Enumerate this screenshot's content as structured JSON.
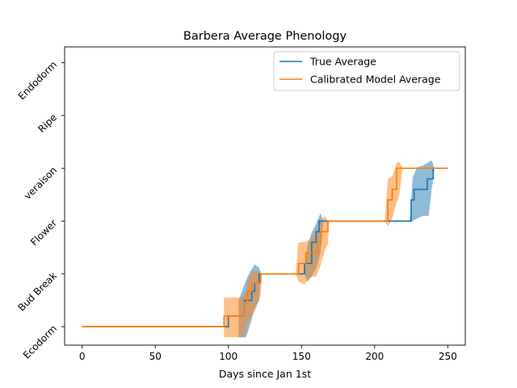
{
  "chart_data": {
    "type": "line",
    "title": "Barbera Average Phenology",
    "xlabel": "Days since Jan 1st",
    "ylabel": "",
    "xlim": [
      -12,
      262
    ],
    "ylim": [
      -0.35,
      5.3
    ],
    "xticks": [
      0,
      50,
      100,
      150,
      200,
      250
    ],
    "yticks": [
      {
        "value": 0,
        "label": "Ecodorm"
      },
      {
        "value": 1,
        "label": "Bud Break"
      },
      {
        "value": 2,
        "label": "Flower"
      },
      {
        "value": 3,
        "label": "veraison"
      },
      {
        "value": 4,
        "label": "Ripe"
      },
      {
        "value": 5,
        "label": "Endodorm"
      }
    ],
    "legend_position": "top-right",
    "series": [
      {
        "name": "True Average",
        "color": "#1f77b4",
        "line": [
          [
            0,
            0
          ],
          [
            100,
            0
          ],
          [
            100,
            0.2
          ],
          [
            111,
            0.2
          ],
          [
            111,
            0.5
          ],
          [
            116,
            0.5
          ],
          [
            116,
            0.67
          ],
          [
            118,
            0.67
          ],
          [
            118,
            0.83
          ],
          [
            121,
            0.83
          ],
          [
            121,
            1
          ],
          [
            152,
            1
          ],
          [
            152,
            1.2
          ],
          [
            157,
            1.2
          ],
          [
            157,
            1.6
          ],
          [
            160,
            1.6
          ],
          [
            160,
            1.8
          ],
          [
            162,
            1.8
          ],
          [
            162,
            2
          ],
          [
            225,
            2
          ],
          [
            225,
            2.4
          ],
          [
            227,
            2.4
          ],
          [
            227,
            2.6
          ],
          [
            236,
            2.6
          ],
          [
            236,
            2.8
          ],
          [
            240,
            2.8
          ],
          [
            240,
            3
          ],
          [
            249,
            3
          ]
        ],
        "band": [
          [
            107,
            -0.2,
            0.5
          ],
          [
            112,
            -0.2,
            0.88
          ],
          [
            115,
            0.05,
            1.05
          ],
          [
            118,
            0.35,
            1.18
          ],
          [
            121,
            0.5,
            1.12
          ],
          [
            122,
            1,
            1
          ],
          [
            150,
            1,
            1
          ],
          [
            152,
            1,
            1.02
          ],
          [
            154,
            0.85,
            1.55
          ],
          [
            157,
            0.95,
            1.78
          ],
          [
            160,
            1.1,
            1.95
          ],
          [
            163,
            1.4,
            2.15
          ],
          [
            165,
            2,
            2
          ],
          [
            224,
            2,
            2
          ],
          [
            226,
            2,
            2.82
          ],
          [
            229,
            2.05,
            3.02
          ],
          [
            233,
            2.1,
            3.05
          ],
          [
            237,
            2.1,
            3.12
          ],
          [
            239,
            2.6,
            3.15
          ],
          [
            241,
            3,
            3
          ]
        ]
      },
      {
        "name": "Calibrated Model Average",
        "color": "#ff7f0e",
        "line": [
          [
            0,
            0
          ],
          [
            97,
            0
          ],
          [
            97,
            0.2
          ],
          [
            111,
            0.2
          ],
          [
            111,
            0.45
          ],
          [
            113,
            0.45
          ],
          [
            113,
            0.67
          ],
          [
            116,
            0.67
          ],
          [
            116,
            0.83
          ],
          [
            122,
            0.83
          ],
          [
            122,
            1
          ],
          [
            148,
            1
          ],
          [
            148,
            1.2
          ],
          [
            153,
            1.2
          ],
          [
            153,
            1.4
          ],
          [
            161,
            1.4
          ],
          [
            161,
            1.6
          ],
          [
            163,
            1.6
          ],
          [
            163,
            1.8
          ],
          [
            168,
            1.8
          ],
          [
            168,
            2
          ],
          [
            209,
            2
          ],
          [
            209,
            2.4
          ],
          [
            212,
            2.4
          ],
          [
            212,
            2.6
          ],
          [
            215,
            2.6
          ],
          [
            215,
            3
          ],
          [
            250,
            3
          ]
        ],
        "band": [
          [
            97,
            -0.2,
            0.55
          ],
          [
            103,
            -0.2,
            0.55
          ],
          [
            108,
            -0.2,
            0.55
          ],
          [
            111,
            -0.2,
            0.6
          ],
          [
            113,
            0.05,
            0.85
          ],
          [
            116,
            0.2,
            1.05
          ],
          [
            119,
            0.35,
            1.05
          ],
          [
            122,
            0.6,
            1.05
          ],
          [
            123,
            1,
            1
          ],
          [
            146,
            1,
            1
          ],
          [
            148,
            0.85,
            1.6
          ],
          [
            152,
            0.8,
            1.6
          ],
          [
            156,
            0.95,
            1.65
          ],
          [
            160,
            0.95,
            1.82
          ],
          [
            163,
            1.15,
            2.0
          ],
          [
            166,
            1.45,
            2.1
          ],
          [
            168,
            1.55,
            2.0
          ],
          [
            169,
            2,
            2
          ],
          [
            207,
            2,
            2
          ],
          [
            209,
            1.9,
            2.8
          ],
          [
            212,
            2.05,
            2.85
          ],
          [
            215,
            2.35,
            3.1
          ],
          [
            217,
            2.5,
            3.12
          ],
          [
            219,
            3,
            3
          ]
        ]
      }
    ]
  }
}
